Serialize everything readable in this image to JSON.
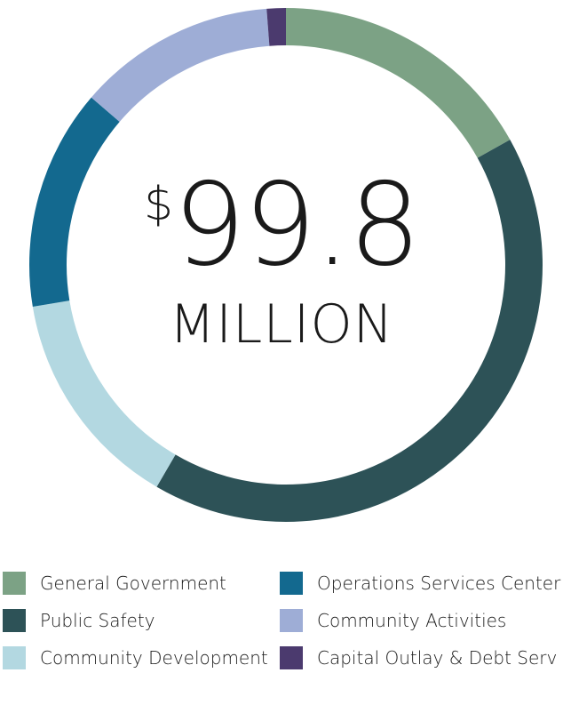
{
  "center": {
    "currency_symbol": "$",
    "amount": "99.8",
    "unit": "MILLION"
  },
  "chart_data": {
    "type": "pie",
    "total_label": "$99.8 MILLION",
    "categories": [
      "General Government",
      "Public Safety",
      "Community Development",
      "Operations Services Center",
      "Community Activities",
      "Capital Outlay & Debt Serv"
    ],
    "values": [
      16.9,
      41.5,
      14.0,
      13.9,
      12.5,
      1.2
    ],
    "colors": [
      "#7ca285",
      "#2d5257",
      "#b3d8e1",
      "#13698f",
      "#9eadd6",
      "#4b3a6e"
    ],
    "legend": "bottom",
    "start": "top",
    "direction": "clockwise"
  }
}
